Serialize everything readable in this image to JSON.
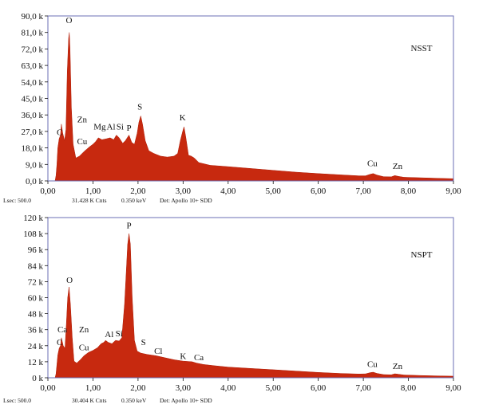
{
  "chart_data": [
    {
      "type": "area",
      "sample_label": "NSST",
      "xlim": [
        0,
        9
      ],
      "ylim": [
        0,
        90000
      ],
      "x_ticks": [
        "0,00",
        "1,00",
        "2,00",
        "3,00",
        "4,00",
        "5,00",
        "6,00",
        "7,00",
        "8,00",
        "9,00"
      ],
      "y_ticks": [
        "0,0 k",
        "9,0 k",
        "18,0 k",
        "27,0 k",
        "36,0 k",
        "45,0 k",
        "54,0 k",
        "63,0 k",
        "72,0 k",
        "81,0 k",
        "90,0 k"
      ],
      "spectrum": [
        [
          0.16,
          0
        ],
        [
          0.18,
          3000
        ],
        [
          0.2,
          9000
        ],
        [
          0.22,
          18000
        ],
        [
          0.25,
          23000
        ],
        [
          0.28,
          25000
        ],
        [
          0.3,
          31000
        ],
        [
          0.33,
          26000
        ],
        [
          0.37,
          22000
        ],
        [
          0.4,
          28000
        ],
        [
          0.43,
          60000
        ],
        [
          0.46,
          78000
        ],
        [
          0.475,
          81000
        ],
        [
          0.49,
          72000
        ],
        [
          0.52,
          40000
        ],
        [
          0.56,
          20000
        ],
        [
          0.62,
          12500
        ],
        [
          0.7,
          13500
        ],
        [
          0.8,
          16000
        ],
        [
          0.92,
          18500
        ],
        [
          1.0,
          20000
        ],
        [
          1.06,
          21500
        ],
        [
          1.12,
          23500
        ],
        [
          1.2,
          22500
        ],
        [
          1.3,
          23000
        ],
        [
          1.38,
          23500
        ],
        [
          1.46,
          22500
        ],
        [
          1.52,
          25000
        ],
        [
          1.58,
          23500
        ],
        [
          1.66,
          20500
        ],
        [
          1.72,
          22000
        ],
        [
          1.8,
          25000
        ],
        [
          1.86,
          21000
        ],
        [
          1.92,
          20000
        ],
        [
          1.98,
          26000
        ],
        [
          2.02,
          32000
        ],
        [
          2.06,
          35500
        ],
        [
          2.1,
          31000
        ],
        [
          2.16,
          22000
        ],
        [
          2.24,
          16500
        ],
        [
          2.35,
          15000
        ],
        [
          2.5,
          13500
        ],
        [
          2.65,
          13000
        ],
        [
          2.8,
          13500
        ],
        [
          2.88,
          15000
        ],
        [
          2.94,
          22000
        ],
        [
          2.99,
          27000
        ],
        [
          3.02,
          29500
        ],
        [
          3.06,
          24000
        ],
        [
          3.12,
          14000
        ],
        [
          3.18,
          13500
        ],
        [
          3.25,
          12500
        ],
        [
          3.35,
          10000
        ],
        [
          3.6,
          8500
        ],
        [
          4.0,
          7800
        ],
        [
          4.5,
          6800
        ],
        [
          5.0,
          5800
        ],
        [
          5.5,
          4800
        ],
        [
          6.0,
          4000
        ],
        [
          6.5,
          3300
        ],
        [
          6.9,
          2800
        ],
        [
          7.05,
          2800
        ],
        [
          7.15,
          3600
        ],
        [
          7.22,
          4000
        ],
        [
          7.3,
          3200
        ],
        [
          7.45,
          2300
        ],
        [
          7.62,
          2200
        ],
        [
          7.7,
          2900
        ],
        [
          7.78,
          2500
        ],
        [
          7.9,
          2000
        ],
        [
          8.3,
          1700
        ],
        [
          8.7,
          1400
        ],
        [
          9.0,
          1200
        ],
        [
          9.0,
          0
        ]
      ],
      "peak_labels": [
        {
          "text": "O",
          "x": 0.47,
          "y": 86000
        },
        {
          "text": "C",
          "x": 0.26,
          "y": 25000
        },
        {
          "text": "Zn",
          "x": 0.76,
          "y": 32000
        },
        {
          "text": "Cu",
          "x": 0.76,
          "y": 20000
        },
        {
          "text": "Mg",
          "x": 1.15,
          "y": 28000
        },
        {
          "text": "Al",
          "x": 1.4,
          "y": 28000
        },
        {
          "text": "Si",
          "x": 1.6,
          "y": 28000
        },
        {
          "text": "P",
          "x": 1.8,
          "y": 27500
        },
        {
          "text": "S",
          "x": 2.04,
          "y": 39000
        },
        {
          "text": "K",
          "x": 2.99,
          "y": 33000
        },
        {
          "text": "Cu",
          "x": 7.2,
          "y": 8000
        },
        {
          "text": "Zn",
          "x": 7.76,
          "y": 6500
        }
      ],
      "footer": {
        "lsec": "Lsec: 500.0",
        "counts": "31.428 K Cnts",
        "kev": "0.350 keV",
        "det": "Det: Apollo 10+ SDD"
      }
    },
    {
      "type": "area",
      "sample_label": "NSPT",
      "xlim": [
        0,
        9
      ],
      "ylim": [
        0,
        120000
      ],
      "x_ticks": [
        "0,00",
        "1,00",
        "2,00",
        "3,00",
        "4,00",
        "5,00",
        "6,00",
        "7,00",
        "8,00",
        "9,00"
      ],
      "y_ticks": [
        "0 k",
        "12 k",
        "24 k",
        "36 k",
        "48 k",
        "60 k",
        "72 k",
        "84 k",
        "96 k",
        "108 k",
        "120 k"
      ],
      "spectrum": [
        [
          0.16,
          0
        ],
        [
          0.18,
          3000
        ],
        [
          0.2,
          10000
        ],
        [
          0.22,
          17000
        ],
        [
          0.25,
          22000
        ],
        [
          0.28,
          24000
        ],
        [
          0.3,
          30000
        ],
        [
          0.34,
          24000
        ],
        [
          0.38,
          22000
        ],
        [
          0.41,
          40000
        ],
        [
          0.44,
          60000
        ],
        [
          0.47,
          68000
        ],
        [
          0.5,
          55000
        ],
        [
          0.54,
          30000
        ],
        [
          0.58,
          12500
        ],
        [
          0.64,
          11000
        ],
        [
          0.72,
          13500
        ],
        [
          0.8,
          16500
        ],
        [
          0.9,
          19000
        ],
        [
          1.0,
          20500
        ],
        [
          1.1,
          22500
        ],
        [
          1.18,
          25500
        ],
        [
          1.24,
          26500
        ],
        [
          1.28,
          28000
        ],
        [
          1.34,
          26500
        ],
        [
          1.42,
          25500
        ],
        [
          1.5,
          28000
        ],
        [
          1.58,
          27500
        ],
        [
          1.64,
          30000
        ],
        [
          1.7,
          55000
        ],
        [
          1.74,
          80000
        ],
        [
          1.77,
          100000
        ],
        [
          1.8,
          108000
        ],
        [
          1.83,
          100000
        ],
        [
          1.87,
          60000
        ],
        [
          1.92,
          28000
        ],
        [
          1.98,
          20000
        ],
        [
          2.06,
          18500
        ],
        [
          2.2,
          17500
        ],
        [
          2.4,
          16500
        ],
        [
          2.6,
          15000
        ],
        [
          2.8,
          13500
        ],
        [
          3.0,
          12500
        ],
        [
          3.2,
          12000
        ],
        [
          3.3,
          11000
        ],
        [
          3.45,
          10000
        ],
        [
          3.7,
          9000
        ],
        [
          4.0,
          8000
        ],
        [
          4.5,
          7000
        ],
        [
          5.0,
          6000
        ],
        [
          5.5,
          5000
        ],
        [
          6.0,
          4000
        ],
        [
          6.5,
          3200
        ],
        [
          6.9,
          2800
        ],
        [
          7.05,
          2900
        ],
        [
          7.15,
          3800
        ],
        [
          7.22,
          4200
        ],
        [
          7.3,
          3300
        ],
        [
          7.45,
          2400
        ],
        [
          7.62,
          2200
        ],
        [
          7.7,
          3000
        ],
        [
          7.78,
          2600
        ],
        [
          7.9,
          2100
        ],
        [
          8.3,
          1700
        ],
        [
          8.7,
          1400
        ],
        [
          9.0,
          1200
        ],
        [
          9.0,
          0
        ]
      ],
      "peak_labels": [
        {
          "text": "P",
          "x": 1.8,
          "y": 112000
        },
        {
          "text": "O",
          "x": 0.48,
          "y": 71000
        },
        {
          "text": "Ca",
          "x": 0.32,
          "y": 34000
        },
        {
          "text": "C",
          "x": 0.26,
          "y": 24500
        },
        {
          "text": "Zn",
          "x": 0.8,
          "y": 34000
        },
        {
          "text": "Cu",
          "x": 0.8,
          "y": 20500
        },
        {
          "text": "Al",
          "x": 1.36,
          "y": 30500
        },
        {
          "text": "Si",
          "x": 1.58,
          "y": 31000
        },
        {
          "text": "S",
          "x": 2.12,
          "y": 24500
        },
        {
          "text": "Cl",
          "x": 2.45,
          "y": 18000
        },
        {
          "text": "K",
          "x": 3.0,
          "y": 14000
        },
        {
          "text": "Ca",
          "x": 3.35,
          "y": 13000
        },
        {
          "text": "Cu",
          "x": 7.2,
          "y": 8000
        },
        {
          "text": "Zn",
          "x": 7.76,
          "y": 6500
        }
      ],
      "footer": {
        "lsec": "Lsec: 500.0",
        "counts": "30.404 K Cnts",
        "kev": "0.350 keV",
        "det": "Det: Apollo 10+ SDD"
      }
    }
  ]
}
